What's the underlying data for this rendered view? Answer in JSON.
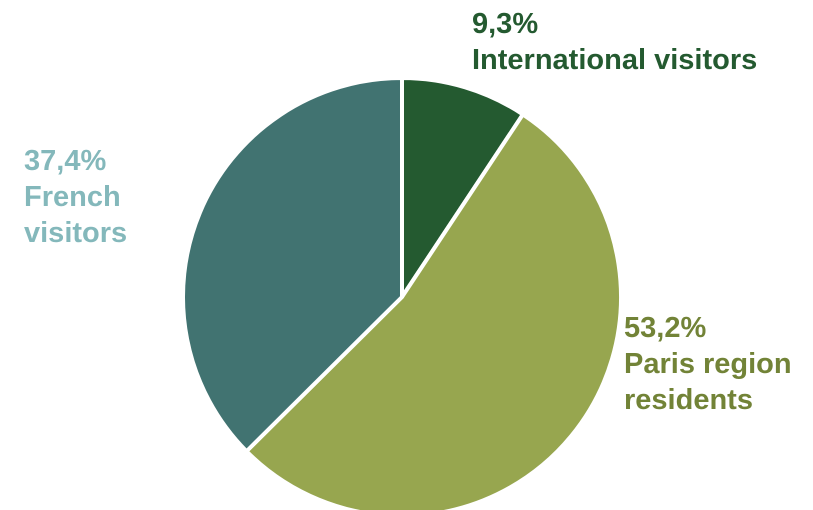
{
  "chart_data": {
    "type": "pie",
    "slices": [
      {
        "key": "international",
        "percent": "9,3%",
        "value": 9.3,
        "label": "International visitors",
        "color": "#245A30",
        "text_color": "#245A30"
      },
      {
        "key": "paris",
        "percent": "53,2%",
        "value": 53.2,
        "label": "Paris region residents",
        "color": "#97A64F",
        "text_color": "#728337"
      },
      {
        "key": "french",
        "percent": "37,4%",
        "value": 37.4,
        "label": "French visitors",
        "color": "#417371",
        "text_color": "#84B8BB"
      }
    ],
    "start_angle": "12 o'clock",
    "direction": "clockwise",
    "separator_color": "#ffffff"
  }
}
